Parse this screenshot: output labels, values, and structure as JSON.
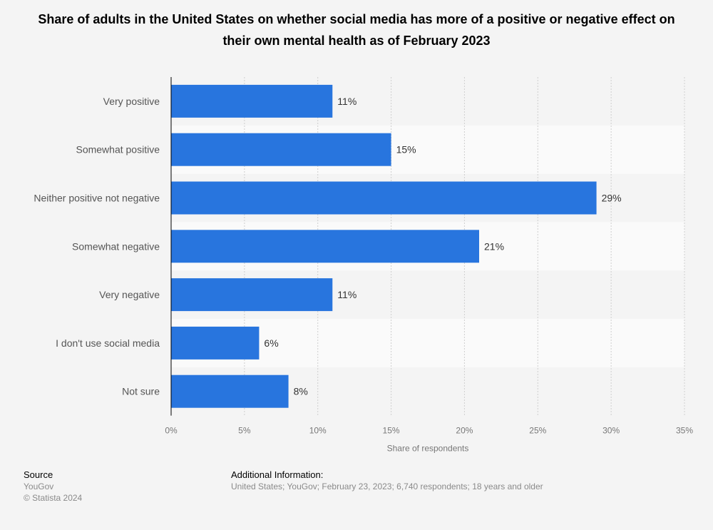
{
  "chart_data": {
    "type": "bar",
    "orientation": "horizontal",
    "title": "Share of adults in the United States on whether social media has more of a positive or negative effect on their own mental health as of February 2023",
    "categories": [
      "Very positive",
      "Somewhat positive",
      "Neither positive not negative",
      "Somewhat negative",
      "Very negative",
      "I don't use social media",
      "Not sure"
    ],
    "values": [
      11,
      15,
      29,
      21,
      11,
      6,
      8
    ],
    "data_labels": [
      "11%",
      "15%",
      "29%",
      "21%",
      "11%",
      "6%",
      "8%"
    ],
    "xlabel": "Share of respondents",
    "ylabel": "",
    "xlim": [
      0,
      35
    ],
    "ticks": [
      0,
      5,
      10,
      15,
      20,
      25,
      30,
      35
    ],
    "tick_labels": [
      "0%",
      "5%",
      "10%",
      "15%",
      "20%",
      "25%",
      "30%",
      "35%"
    ],
    "grid": true,
    "bar_color": "#2875de"
  },
  "footer": {
    "source_heading": "Source",
    "source": "YouGov",
    "copyright": "© Statista 2024",
    "info_heading": "Additional Information:",
    "info": "United States; YouGov; February 23, 2023; 6,740 respondents; 18 years and older"
  }
}
